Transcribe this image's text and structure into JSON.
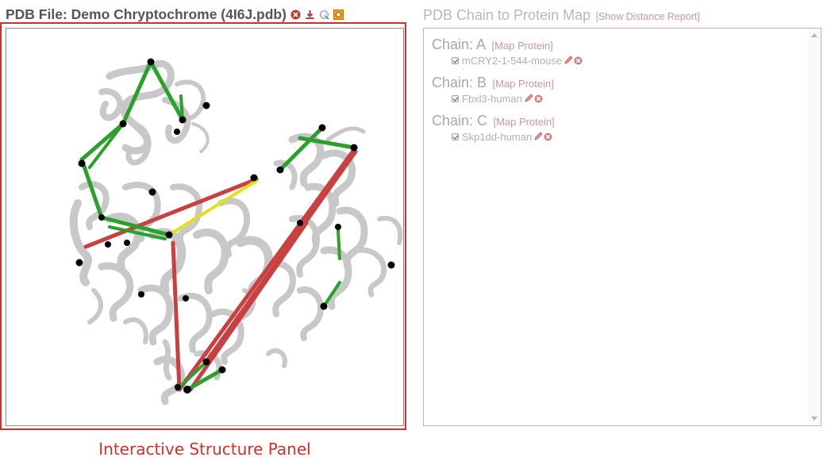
{
  "structure": {
    "title": "PDB File: Demo Chryptochrome (4I6J.pdb)",
    "icons": [
      "remove-icon",
      "download-icon",
      "view-icon",
      "screenshot-icon"
    ],
    "caption": "Interactive Structure Panel",
    "colors": {
      "frame": "#d42f2f",
      "cartoon": "#c8c8c8",
      "link_satisfied": "#2ca02c",
      "link_violated": "#c94040",
      "link_selected": "#e0e020",
      "endpoint": "#000000"
    }
  },
  "chain_map": {
    "title": "PDB Chain to Protein Map",
    "report_link": "[Show Distance Report]",
    "chains": [
      {
        "label": "Chain: A",
        "map_link": "[Map Protein]",
        "protein": "mCRY2-1-544-mouse"
      },
      {
        "label": "Chain: B",
        "map_link": "[Map Protein]",
        "protein": "Fbxl3-human"
      },
      {
        "label": "Chain: C",
        "map_link": "[Map Protein]",
        "protein": "Skp1dd-human"
      }
    ]
  }
}
